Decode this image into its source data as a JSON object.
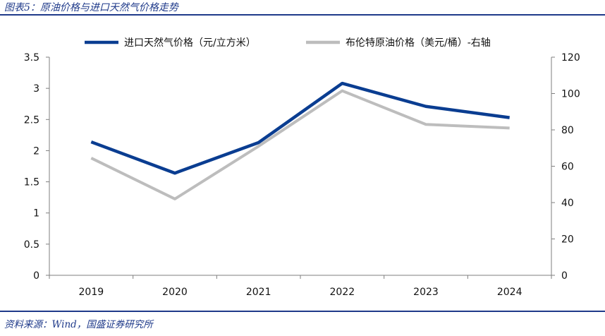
{
  "figure": {
    "title": "图表5：原油价格与进口天然气价格走势",
    "source": "资料来源：Wind，国盛证券研究所"
  },
  "chart_data": {
    "type": "line",
    "categories": [
      "2019",
      "2020",
      "2021",
      "2022",
      "2023",
      "2024"
    ],
    "series": [
      {
        "name": "进口天然气价格（元/立方米）",
        "axis": "left",
        "color": "#0a3d91",
        "values": [
          2.14,
          1.64,
          2.13,
          3.08,
          2.71,
          2.53
        ]
      },
      {
        "name": "布伦特原油价格（美元/桶）-右轴",
        "axis": "right",
        "color": "#bdbdbd",
        "values": [
          64.5,
          42.0,
          71.0,
          101.5,
          83.0,
          81.0
        ]
      }
    ],
    "y_left": {
      "ticks": [
        "0",
        "0.5",
        "1",
        "1.5",
        "2",
        "2.5",
        "3",
        "3.5"
      ],
      "ylim": [
        0,
        3.5
      ]
    },
    "y_right": {
      "ticks": [
        "0",
        "20",
        "40",
        "60",
        "80",
        "100",
        "120"
      ],
      "ylim": [
        0,
        120
      ]
    },
    "grid": false,
    "legend_position": "top"
  }
}
